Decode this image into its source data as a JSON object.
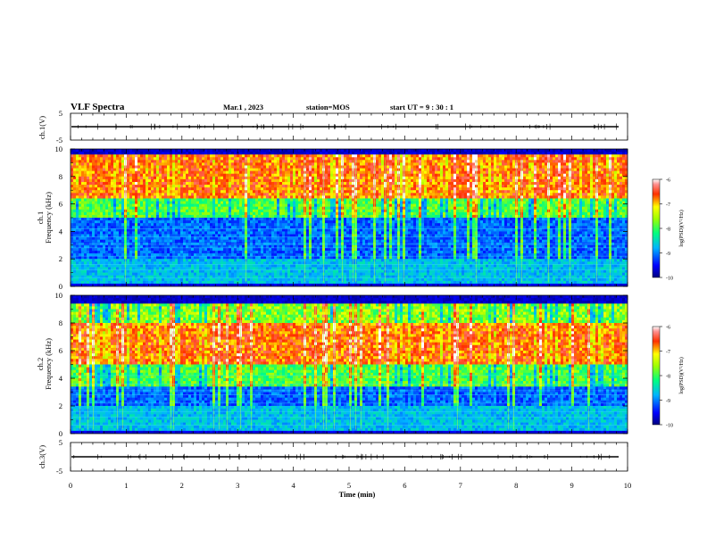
{
  "header": {
    "title": "VLF Spectra",
    "date": "Mar.1 , 2023",
    "station": "station=MOS",
    "start": "start UT =  9 : 30 : 1"
  },
  "chart_data": [
    {
      "type": "line",
      "panel": "ch1-waveform",
      "ylabel": "ch.1(V)",
      "ylim": [
        -5,
        5
      ],
      "yticks": [
        "5",
        "-5"
      ],
      "xlim": [
        0,
        10
      ],
      "series": [
        {
          "values_description_level": 0
        }
      ]
    },
    {
      "type": "heatmap",
      "panel": "ch1-spectrogram",
      "ylabel": "ch.1\nFrequency (kHz)",
      "ylim": [
        0,
        10
      ],
      "yticks": [
        "0",
        "2",
        "4",
        "6",
        "8",
        "10"
      ],
      "xlim": [
        0,
        10
      ],
      "colorbar": {
        "label": "log(PSD)(V²/Hz)",
        "range": [
          -10,
          -6
        ],
        "ticks": [
          "-6",
          "-7",
          "-8",
          "-9",
          "-10"
        ]
      },
      "band_peak_khz": [
        6.5,
        9.5
      ]
    },
    {
      "type": "heatmap",
      "panel": "ch2-spectrogram",
      "ylabel": "ch.2\nFrequency (kHz)",
      "ylim": [
        0,
        10
      ],
      "yticks": [
        "0",
        "2",
        "4",
        "6",
        "8",
        "10"
      ],
      "xlim": [
        0,
        10
      ],
      "colorbar": {
        "label": "log(PSD)(V²/Hz)",
        "range": [
          -10,
          -6
        ],
        "ticks": [
          "-6",
          "-7",
          "-8",
          "-9",
          "-10"
        ]
      },
      "band_peak_khz": [
        5.0,
        8.0
      ]
    },
    {
      "type": "line",
      "panel": "ch3-waveform",
      "ylabel": "ch.3(V)",
      "ylim": [
        -5,
        5
      ],
      "yticks": [
        "5",
        "-5"
      ],
      "xlim": [
        0,
        10
      ],
      "xlabel": "Time (min)",
      "xticks": [
        "0",
        "1",
        "2",
        "3",
        "4",
        "5",
        "6",
        "7",
        "8",
        "9",
        "10"
      ]
    }
  ]
}
